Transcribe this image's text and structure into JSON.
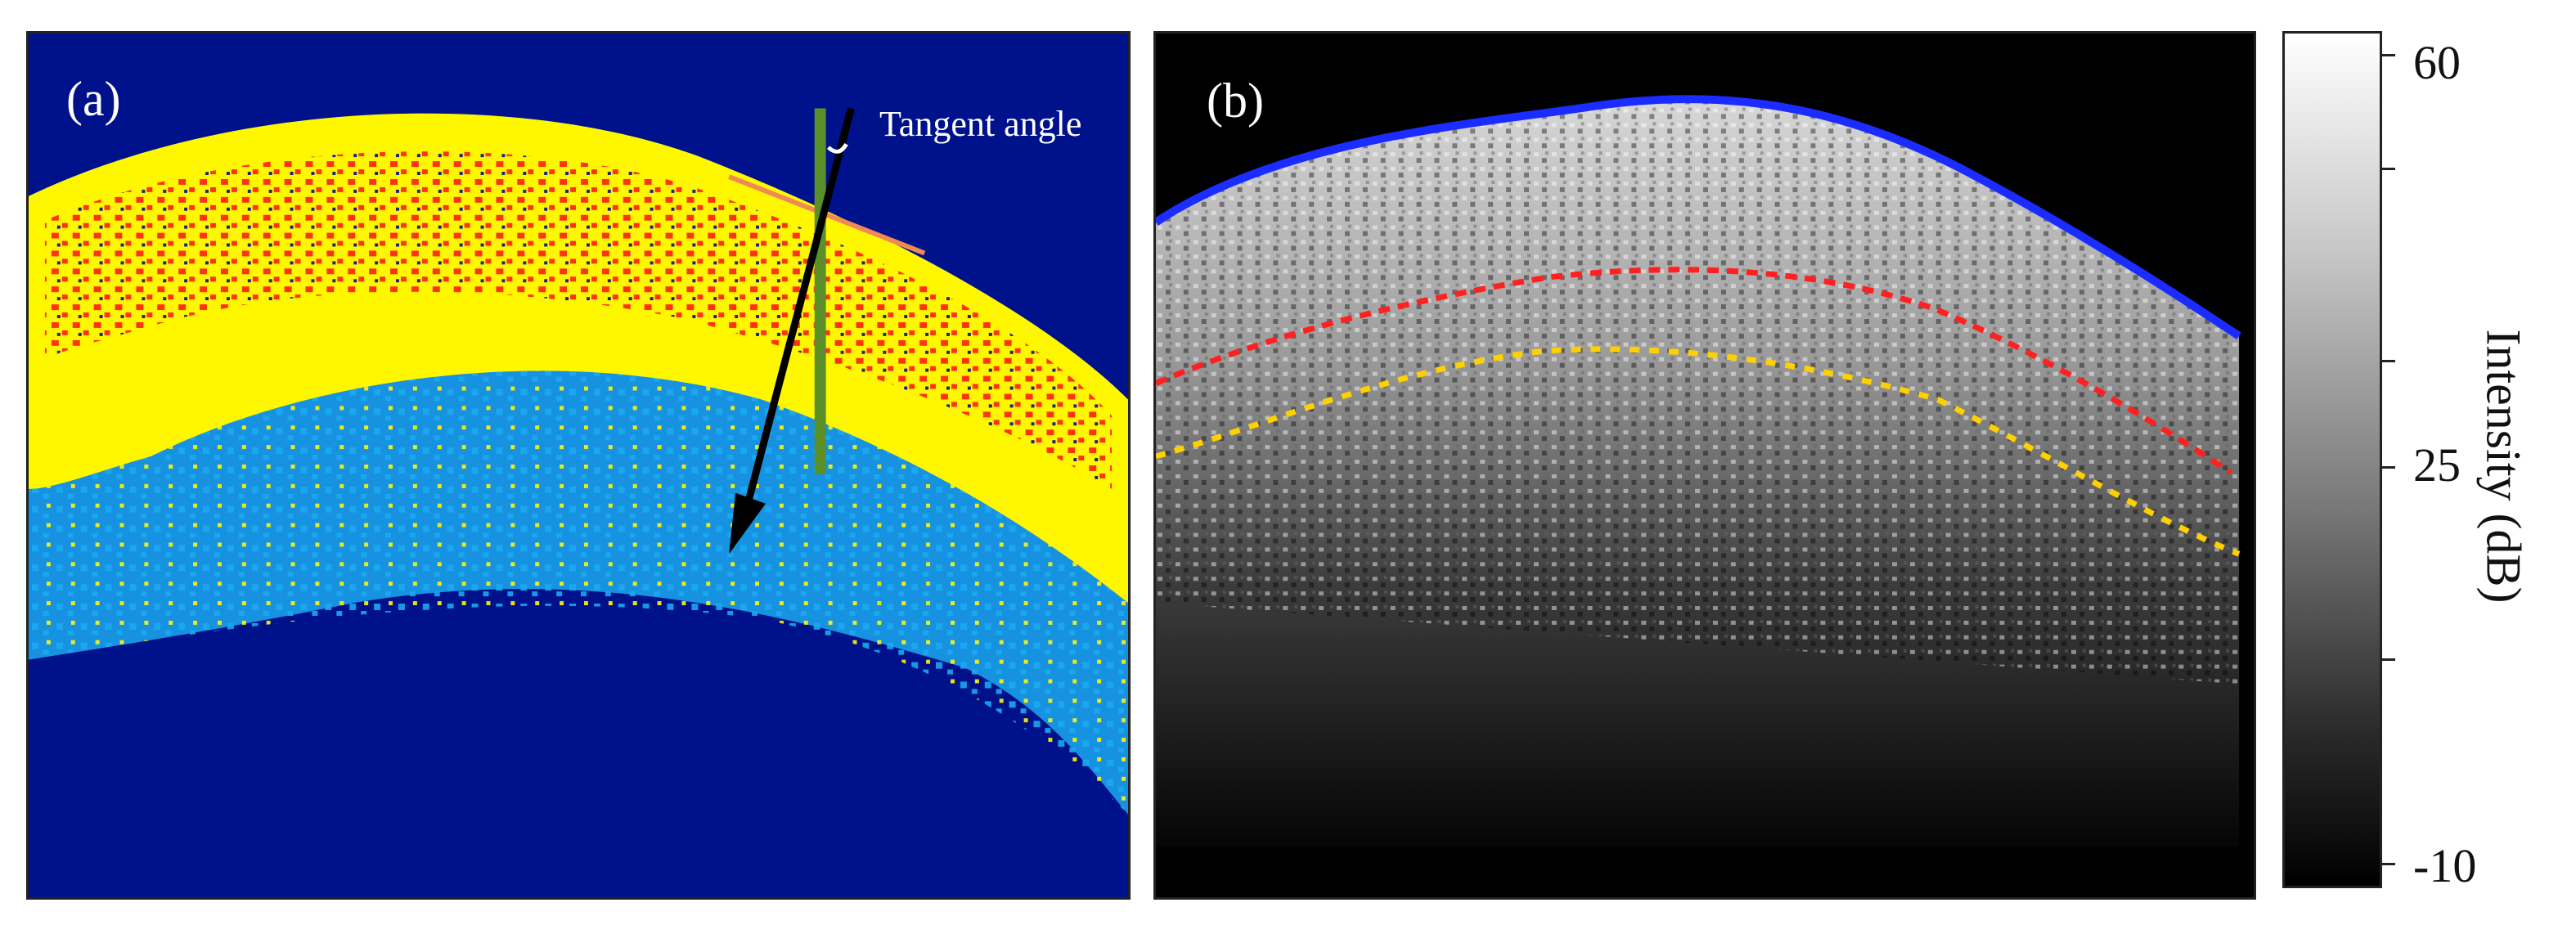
{
  "panel_a": {
    "label": "(a)",
    "annotation": "Tangent angle",
    "colors": {
      "background": "#00118c",
      "outer_layer": "#fff700",
      "core": "#ff2a10",
      "lower_layer": "#1aa9f0",
      "tangent_line": "#f08a55",
      "vertical_line": "#5a8f2a",
      "arrow": "#000000"
    }
  },
  "panel_b": {
    "label": "(b)",
    "colors": {
      "background": "#000000",
      "surface_boundary": "#1a2cff",
      "boundary_2": "#ff2020",
      "boundary_3": "#ffd000"
    }
  },
  "colorbar": {
    "title": "Intensity (dB)",
    "tick_labels": [
      "60",
      "25",
      "-10"
    ],
    "min": -10,
    "max": 60
  }
}
